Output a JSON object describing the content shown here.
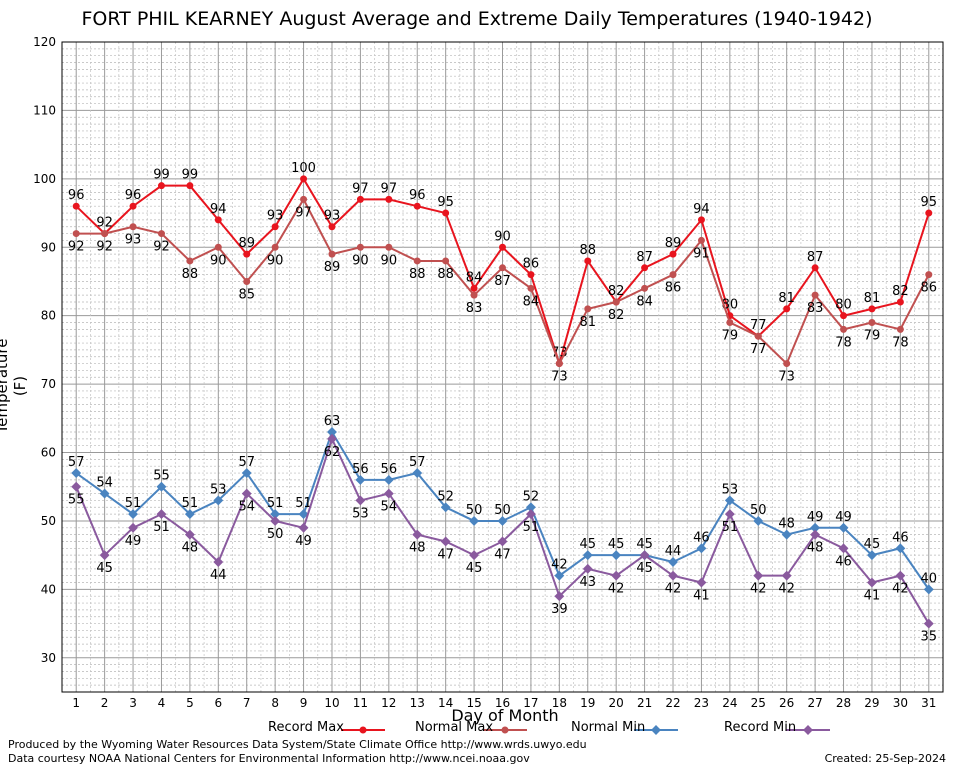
{
  "title": "FORT PHIL KEARNEY August Average and Extreme Daily Temperatures (1940-1942)",
  "footer": {
    "line1": "Produced by the Wyoming Water Resources Data System/State Climate Office http://www.wrds.uwyo.edu",
    "line2": "Data courtesy NOAA National Centers for Environmental Information http://www.ncei.noaa.gov",
    "created": "Created:  25-Sep-2024"
  },
  "chart_data": {
    "type": "line",
    "title": "FORT PHIL KEARNEY August Average and Extreme Daily Temperatures (1940-1942)",
    "xlabel": "Day of Month",
    "ylabel": "Temperature (F)",
    "xlim": [
      0.5,
      31.5
    ],
    "ylim": [
      25,
      120
    ],
    "yticks": [
      30,
      40,
      50,
      60,
      70,
      80,
      90,
      100,
      110,
      120
    ],
    "x": [
      1,
      2,
      3,
      4,
      5,
      6,
      7,
      8,
      9,
      10,
      11,
      12,
      13,
      14,
      15,
      16,
      17,
      18,
      19,
      20,
      21,
      22,
      23,
      24,
      25,
      26,
      27,
      28,
      29,
      30,
      31
    ],
    "grid": true,
    "legend": "bottom",
    "series": [
      {
        "name": "Record Max",
        "color": "#e8141e",
        "values": [
          96,
          92,
          96,
          99,
          99,
          94,
          89,
          93,
          100,
          93,
          97,
          97,
          96,
          95,
          84,
          90,
          86,
          73,
          88,
          82,
          87,
          89,
          94,
          80,
          77,
          81,
          87,
          80,
          81,
          82,
          95
        ]
      },
      {
        "name": "Normal Max",
        "color": "#c05050",
        "values": [
          92,
          92,
          93,
          92,
          88,
          90,
          85,
          90,
          97,
          89,
          90,
          90,
          88,
          88,
          83,
          87,
          84,
          73,
          81,
          82,
          84,
          86,
          91,
          79,
          77,
          73,
          83,
          78,
          79,
          78,
          86
        ]
      },
      {
        "name": "Normal Min",
        "color": "#4a84c0",
        "values": [
          57,
          54,
          51,
          55,
          51,
          53,
          57,
          51,
          51,
          63,
          56,
          56,
          57,
          52,
          50,
          50,
          52,
          42,
          45,
          45,
          45,
          44,
          46,
          53,
          50,
          48,
          49,
          49,
          45,
          46,
          40
        ]
      },
      {
        "name": "Record Min",
        "color": "#8a5a9e",
        "values": [
          55,
          45,
          49,
          51,
          48,
          44,
          54,
          50,
          49,
          62,
          53,
          54,
          48,
          47,
          45,
          47,
          51,
          39,
          43,
          42,
          45,
          42,
          41,
          51,
          42,
          42,
          48,
          46,
          41,
          42,
          35
        ]
      }
    ]
  }
}
